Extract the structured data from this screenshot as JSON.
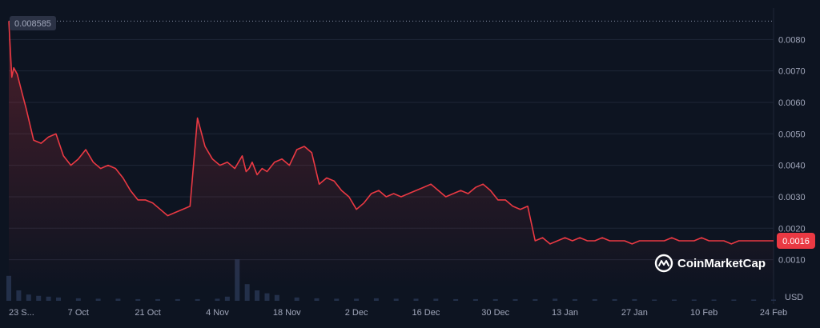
{
  "chart_data": {
    "type": "area",
    "currency_label": "USD",
    "start_price_label": "0.008585",
    "current_price_label": "0.0016",
    "y_ticks": [
      "0.0010",
      "0.0020",
      "0.0030",
      "0.0040",
      "0.0050",
      "0.0060",
      "0.0070",
      "0.0080"
    ],
    "ylim": [
      0.0001,
      0.009
    ],
    "x_tick_labels": [
      "23 S...",
      "7 Oct",
      "21 Oct",
      "4 Nov",
      "18 Nov",
      "2 Dec",
      "16 Dec",
      "30 Dec",
      "13 Jan",
      "27 Jan",
      "10 Feb",
      "24 Feb"
    ],
    "x_range_days": [
      0,
      154
    ],
    "x_tick_days": [
      0,
      14,
      28,
      42,
      56,
      70,
      84,
      98,
      112,
      126,
      140,
      154
    ],
    "start_price": 0.008585,
    "current_price": 0.0016,
    "series": [
      {
        "values_day": [
          0,
          0.6,
          1,
          1.7,
          2.5,
          3.5,
          5,
          6.5,
          8,
          9.5,
          11,
          12.5,
          14,
          15.5,
          17,
          18.5,
          20,
          21.5,
          23,
          24.5,
          26,
          27.5,
          29,
          30.5,
          32,
          33.5,
          35,
          36.5,
          38,
          39.5,
          41,
          42.5,
          44,
          45.5,
          47,
          47.8,
          48.4,
          49,
          50,
          51,
          52,
          53.5,
          55,
          56.5,
          58,
          59.5,
          61,
          62.5,
          64,
          65.5,
          67,
          68.5,
          70,
          71.5,
          73,
          74.5,
          76,
          77.5,
          79,
          80.5,
          82,
          83.5,
          85,
          86.5,
          88,
          89.5,
          91,
          92.5,
          94,
          95.5,
          97,
          98.5,
          100,
          101.5,
          103,
          104.5,
          106,
          107.5,
          109,
          110.5,
          112,
          113.5,
          115,
          116.5,
          118,
          119.5,
          121,
          122.5,
          124,
          125.5,
          127,
          128,
          129,
          130.5,
          132,
          133.5,
          135,
          136.5,
          138,
          139.5,
          141,
          142.5,
          144,
          145.5,
          147,
          148.5,
          150,
          151.5,
          153,
          154
        ],
        "values_price": [
          0.008585,
          0.0068,
          0.0071,
          0.0069,
          0.0064,
          0.0058,
          0.0048,
          0.0047,
          0.0049,
          0.005,
          0.0043,
          0.004,
          0.0042,
          0.0045,
          0.0041,
          0.0039,
          0.004,
          0.0039,
          0.0036,
          0.0032,
          0.0029,
          0.0029,
          0.0028,
          0.0026,
          0.0024,
          0.0025,
          0.0026,
          0.0027,
          0.0055,
          0.0046,
          0.0042,
          0.004,
          0.0041,
          0.0039,
          0.0043,
          0.0038,
          0.0039,
          0.0041,
          0.0037,
          0.0039,
          0.0038,
          0.0041,
          0.0042,
          0.004,
          0.0045,
          0.0046,
          0.0044,
          0.0034,
          0.0036,
          0.0035,
          0.0032,
          0.003,
          0.0026,
          0.0028,
          0.0031,
          0.0032,
          0.003,
          0.0031,
          0.003,
          0.0031,
          0.0032,
          0.0033,
          0.0034,
          0.0032,
          0.003,
          0.0031,
          0.0032,
          0.0031,
          0.0033,
          0.0034,
          0.0032,
          0.0029,
          0.0029,
          0.0027,
          0.0026,
          0.0027,
          0.0016,
          0.0017,
          0.0015,
          0.0016,
          0.0017,
          0.0016,
          0.0017,
          0.0016,
          0.0016,
          0.0017,
          0.0016,
          0.0016,
          0.0016,
          0.0015,
          0.0016,
          0.0016,
          0.0016,
          0.0016,
          0.0016,
          0.0017,
          0.0016,
          0.0016,
          0.0016,
          0.0017,
          0.0016,
          0.0016,
          0.0016,
          0.0015,
          0.0016,
          0.0016,
          0.0016,
          0.0016,
          0.0016,
          0.0016
        ],
        "volume_day": [
          0,
          2,
          4,
          6,
          8,
          10,
          14,
          18,
          22,
          26,
          30,
          34,
          38,
          42,
          44,
          46,
          48,
          50,
          52,
          54,
          58,
          62,
          66,
          70,
          74,
          78,
          82,
          86,
          90,
          94,
          98,
          102,
          106,
          110,
          114,
          118,
          122,
          126,
          130,
          134,
          138,
          142,
          146,
          150,
          154
        ],
        "volume_rel": [
          0.6,
          0.25,
          0.15,
          0.12,
          0.1,
          0.08,
          0.06,
          0.05,
          0.05,
          0.04,
          0.04,
          0.04,
          0.04,
          0.05,
          0.1,
          1.0,
          0.4,
          0.25,
          0.18,
          0.14,
          0.08,
          0.06,
          0.05,
          0.05,
          0.06,
          0.05,
          0.05,
          0.05,
          0.04,
          0.04,
          0.04,
          0.04,
          0.04,
          0.05,
          0.04,
          0.04,
          0.04,
          0.04,
          0.03,
          0.03,
          0.03,
          0.03,
          0.03,
          0.03,
          0.03
        ]
      }
    ],
    "line_color": "#ea3943",
    "label_bg": "#ea3943",
    "start_label_bg": "#2b3245",
    "grid": true,
    "watermark": "CoinMarketCap",
    "watermark_icon": "coinmarketcap-logo-icon"
  }
}
